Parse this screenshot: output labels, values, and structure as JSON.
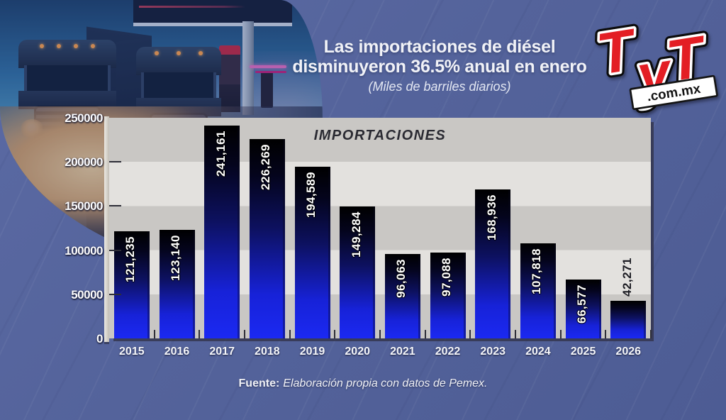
{
  "background": {
    "blue": "#54639b"
  },
  "header": {
    "title_line1": "Las importaciones de diésel",
    "title_line2": "disminuyeron 36.5% anual en enero",
    "subtitle": "(Miles de barriles diarios)"
  },
  "logo": {
    "l1": "T",
    "l2": "y",
    "l3": "T",
    "domain": ".com.mx",
    "red": "#e31e24"
  },
  "chart_data": {
    "type": "bar",
    "title": "IMPORTACIONES",
    "categories": [
      "2015",
      "2016",
      "2017",
      "2018",
      "2019",
      "2020",
      "2021",
      "2022",
      "2023",
      "2024",
      "2025",
      "2026"
    ],
    "values": [
      121235,
      123140,
      241161,
      226269,
      194589,
      149284,
      96063,
      97088,
      168936,
      107818,
      66577,
      42271
    ],
    "value_labels": [
      "121,235",
      "123,140",
      "241,161",
      "226,269",
      "194,589",
      "149,284",
      "96,063",
      "97,088",
      "168,936",
      "107,818",
      "66,577",
      "42,271"
    ],
    "label_outside": [
      false,
      false,
      false,
      false,
      false,
      false,
      false,
      false,
      false,
      false,
      false,
      true
    ],
    "xlabel": "",
    "ylabel": "",
    "ylim": [
      0,
      250000
    ],
    "ytick_step": 50000,
    "yticks": [
      "250000",
      "200000",
      "150000",
      "100000",
      "50000",
      "0"
    ],
    "grid": "banded-horizontal",
    "legend_position": "none",
    "bar_color_top": "#000000",
    "bar_color_bottom": "#1b29f2",
    "band_color_dark": "#c9c7c4",
    "band_color_light": "#e3e1de"
  },
  "source": {
    "label": "Fuente:",
    "text": "Elaboración propia con datos de Pemex."
  }
}
